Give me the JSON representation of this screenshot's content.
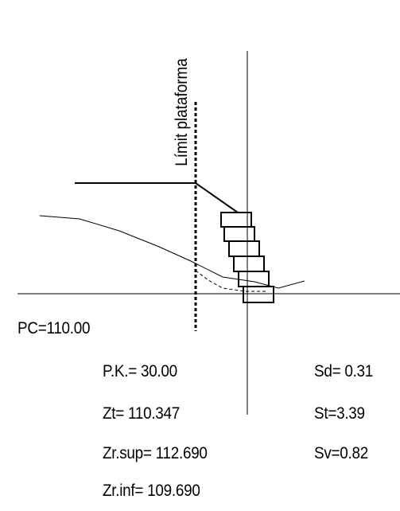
{
  "labels": {
    "platform_limit": "Límit plataforma",
    "pc": "PC=110.00",
    "pk": "P.K.= 30.00",
    "zt": "Zt= 110.347",
    "zr_sup": "Zr.sup= 112.690",
    "zr_inf": "Zr.inf= 109.690",
    "sd": "Sd= 0.31",
    "st": "St=3.39",
    "sv": "Sv=0.82"
  },
  "colors": {
    "line": "#000000",
    "background": "#ffffff"
  }
}
